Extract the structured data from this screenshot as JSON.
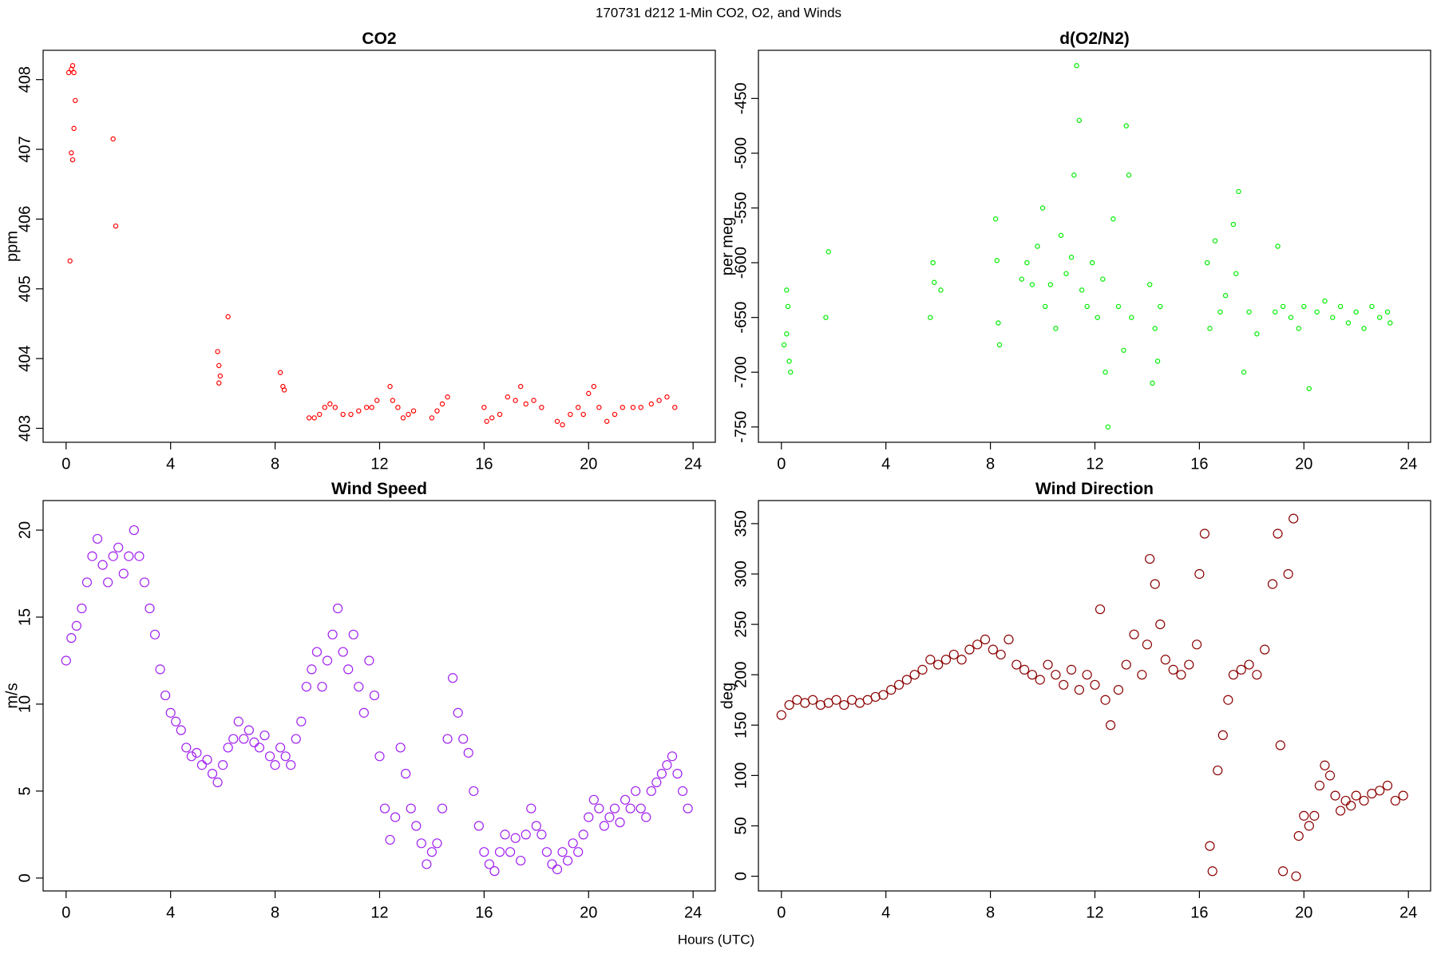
{
  "title": "170731   d212   1-Min CO2, O2, and Winds",
  "x_label": "Hours (UTC)",
  "chart_data": [
    {
      "type": "scatter",
      "title": "CO2",
      "y_label": "ppm",
      "color": "#ff0000",
      "xlim": [
        -0.88,
        24.85
      ],
      "xticks": [
        0,
        4,
        8,
        12,
        16,
        20,
        24
      ],
      "ylim": [
        402.8,
        408.42
      ],
      "yticks": [
        403,
        404,
        405,
        406,
        407,
        408
      ],
      "x": [
        0.1,
        0.2,
        0.25,
        0.3,
        0.2,
        0.25,
        0.15,
        0.3,
        0.35,
        1.8,
        1.9,
        5.8,
        5.85,
        5.9,
        5.85,
        6.2,
        8.2,
        8.3,
        8.35,
        9.3,
        9.5,
        9.7,
        9.9,
        10.1,
        10.3,
        10.6,
        10.9,
        11.2,
        11.5,
        11.7,
        11.9,
        12.4,
        12.5,
        12.7,
        12.9,
        13.1,
        13.3,
        14.0,
        14.2,
        14.4,
        14.6,
        16.0,
        16.1,
        16.3,
        16.6,
        16.9,
        17.2,
        17.4,
        17.6,
        17.9,
        18.2,
        18.8,
        19.0,
        19.3,
        19.6,
        19.8,
        20.0,
        20.2,
        20.4,
        20.7,
        21.0,
        21.3,
        21.7,
        22.0,
        22.4,
        22.7,
        23.0,
        23.3
      ],
      "values": [
        408.1,
        408.15,
        408.2,
        408.1,
        406.95,
        406.85,
        405.4,
        407.3,
        407.7,
        407.15,
        405.9,
        404.1,
        403.9,
        403.75,
        403.65,
        404.6,
        403.8,
        403.6,
        403.55,
        403.15,
        403.15,
        403.2,
        403.3,
        403.35,
        403.3,
        403.2,
        403.2,
        403.25,
        403.3,
        403.3,
        403.4,
        403.6,
        403.4,
        403.3,
        403.15,
        403.2,
        403.25,
        403.15,
        403.25,
        403.35,
        403.45,
        403.3,
        403.1,
        403.15,
        403.2,
        403.45,
        403.4,
        403.6,
        403.35,
        403.4,
        403.3,
        403.1,
        403.05,
        403.2,
        403.3,
        403.2,
        403.5,
        403.6,
        403.3,
        403.1,
        403.2,
        403.3,
        403.3,
        403.3,
        403.35,
        403.4,
        403.45,
        403.3
      ]
    },
    {
      "type": "scatter",
      "title": "d(O2/N2)",
      "y_label": "per meg",
      "color": "#00ee00",
      "xlim": [
        -0.88,
        24.85
      ],
      "xticks": [
        0,
        4,
        8,
        12,
        16,
        20,
        24
      ],
      "ylim": [
        -764,
        -406
      ],
      "yticks": [
        -750,
        -700,
        -650,
        -600,
        -550,
        -500,
        -450
      ],
      "x": [
        0.1,
        0.2,
        0.3,
        0.35,
        0.2,
        0.25,
        1.7,
        1.8,
        5.7,
        5.8,
        5.85,
        6.1,
        8.2,
        8.25,
        8.3,
        8.35,
        9.2,
        9.4,
        9.6,
        9.8,
        10.0,
        10.1,
        10.3,
        10.5,
        10.7,
        10.9,
        11.1,
        11.2,
        11.3,
        11.4,
        11.5,
        11.7,
        11.9,
        12.1,
        12.3,
        12.4,
        12.5,
        12.7,
        12.9,
        13.1,
        13.2,
        13.3,
        13.4,
        14.1,
        14.2,
        14.3,
        14.4,
        14.5,
        16.3,
        16.4,
        16.6,
        16.8,
        17.0,
        17.3,
        17.4,
        17.5,
        17.7,
        17.9,
        18.2,
        18.9,
        19.0,
        19.2,
        19.5,
        19.8,
        20.0,
        20.2,
        20.5,
        20.8,
        21.1,
        21.4,
        21.7,
        22.0,
        22.3,
        22.6,
        22.9,
        23.2,
        23.3
      ],
      "values": [
        -675,
        -665,
        -690,
        -700,
        -625,
        -640,
        -650,
        -590,
        -650,
        -600,
        -618,
        -625,
        -560,
        -598,
        -655,
        -675,
        -615,
        -600,
        -620,
        -585,
        -550,
        -640,
        -620,
        -660,
        -575,
        -610,
        -595,
        -520,
        -420,
        -470,
        -625,
        -640,
        -600,
        -650,
        -615,
        -700,
        -750,
        -560,
        -640,
        -680,
        -475,
        -520,
        -650,
        -620,
        -710,
        -660,
        -690,
        -640,
        -600,
        -660,
        -580,
        -645,
        -630,
        -565,
        -610,
        -535,
        -700,
        -645,
        -665,
        -645,
        -585,
        -640,
        -650,
        -660,
        -640,
        -715,
        -645,
        -635,
        -650,
        -640,
        -655,
        -645,
        -660,
        -640,
        -650,
        -645,
        -655
      ]
    },
    {
      "type": "scatter",
      "title": "Wind Speed",
      "y_label": "m/s",
      "color": "#a020f0",
      "xlim": [
        -0.88,
        24.85
      ],
      "xticks": [
        0,
        4,
        8,
        12,
        16,
        20,
        24
      ],
      "ylim": [
        -0.74,
        21.7
      ],
      "yticks": [
        0,
        5,
        10,
        15,
        20
      ],
      "x": [
        0,
        0.2,
        0.4,
        0.6,
        0.8,
        1.0,
        1.2,
        1.4,
        1.6,
        1.8,
        2.0,
        2.2,
        2.4,
        2.6,
        2.8,
        3.0,
        3.2,
        3.4,
        3.6,
        3.8,
        4.0,
        4.2,
        4.4,
        4.6,
        4.8,
        5.0,
        5.2,
        5.4,
        5.6,
        5.8,
        6.0,
        6.2,
        6.4,
        6.6,
        6.8,
        7.0,
        7.2,
        7.4,
        7.6,
        7.8,
        8.0,
        8.2,
        8.4,
        8.6,
        8.8,
        9.0,
        9.2,
        9.4,
        9.6,
        9.8,
        10.0,
        10.2,
        10.4,
        10.6,
        10.8,
        11.0,
        11.2,
        11.4,
        11.6,
        11.8,
        12.0,
        12.2,
        12.4,
        12.6,
        12.8,
        13.0,
        13.2,
        13.4,
        13.6,
        13.8,
        14.0,
        14.2,
        14.4,
        14.6,
        14.8,
        15.0,
        15.2,
        15.4,
        15.6,
        15.8,
        16.0,
        16.2,
        16.4,
        16.6,
        16.8,
        17.0,
        17.2,
        17.4,
        17.6,
        17.8,
        18.0,
        18.2,
        18.4,
        18.6,
        18.8,
        19.0,
        19.2,
        19.4,
        19.6,
        19.8,
        20.0,
        20.2,
        20.4,
        20.6,
        20.8,
        21.0,
        21.2,
        21.4,
        21.6,
        21.8,
        22.0,
        22.2,
        22.4,
        22.6,
        22.8,
        23.0,
        23.2,
        23.4,
        23.6,
        23.8
      ],
      "values": [
        12.5,
        13.8,
        14.5,
        15.5,
        17,
        18.5,
        19.5,
        18,
        17,
        18.5,
        19,
        17.5,
        18.5,
        20,
        18.5,
        17,
        15.5,
        14,
        12,
        10.5,
        9.5,
        9,
        8.5,
        7.5,
        7,
        7.2,
        6.5,
        6.8,
        6,
        5.5,
        6.5,
        7.5,
        8,
        9,
        8,
        8.5,
        7.8,
        7.5,
        8.2,
        7,
        6.5,
        7.5,
        7,
        6.5,
        8,
        9,
        11,
        12,
        13,
        11,
        12.5,
        14,
        15.5,
        13,
        12,
        14,
        11,
        9.5,
        12.5,
        10.5,
        7,
        4,
        2.2,
        3.5,
        7.5,
        6,
        4,
        3,
        2,
        0.8,
        1.5,
        2,
        4,
        8,
        11.5,
        9.5,
        8,
        7.2,
        5,
        3,
        1.5,
        0.8,
        0.4,
        1.5,
        2.5,
        1.5,
        2.3,
        1,
        2.5,
        4,
        3,
        2.5,
        1.5,
        0.8,
        0.5,
        1.5,
        1,
        2,
        1.5,
        2.5,
        3.5,
        4.5,
        4,
        3,
        3.5,
        4,
        3.2,
        4.5,
        4,
        5,
        4,
        3.5,
        5,
        5.5,
        6,
        6.5,
        7,
        6,
        5,
        4
      ]
    },
    {
      "type": "scatter",
      "title": "Wind Direction",
      "y_label": "deg",
      "color": "#8b0000",
      "xlim": [
        -0.88,
        24.85
      ],
      "xticks": [
        0,
        4,
        8,
        12,
        16,
        20,
        24
      ],
      "ylim": [
        -14.6,
        372.9
      ],
      "yticks": [
        0,
        50,
        100,
        150,
        200,
        250,
        300,
        350
      ],
      "x": [
        0,
        0.3,
        0.6,
        0.9,
        1.2,
        1.5,
        1.8,
        2.1,
        2.4,
        2.7,
        3.0,
        3.3,
        3.6,
        3.9,
        4.2,
        4.5,
        4.8,
        5.1,
        5.4,
        5.7,
        6.0,
        6.3,
        6.6,
        6.9,
        7.2,
        7.5,
        7.8,
        8.1,
        8.4,
        8.7,
        9.0,
        9.3,
        9.6,
        9.9,
        10.2,
        10.5,
        10.8,
        11.1,
        11.4,
        11.7,
        12.0,
        12.2,
        12.4,
        12.6,
        12.9,
        13.2,
        13.5,
        13.8,
        14.0,
        14.1,
        14.3,
        14.5,
        14.7,
        15.0,
        15.3,
        15.6,
        15.9,
        16.0,
        16.2,
        16.4,
        16.5,
        16.7,
        16.9,
        17.1,
        17.3,
        17.6,
        17.9,
        18.2,
        18.5,
        18.8,
        19.0,
        19.1,
        19.2,
        19.4,
        19.6,
        19.7,
        19.8,
        20.0,
        20.2,
        20.4,
        20.6,
        20.8,
        21.0,
        21.2,
        21.4,
        21.6,
        21.8,
        22.0,
        22.3,
        22.6,
        22.9,
        23.2,
        23.5,
        23.8
      ],
      "values": [
        160,
        170,
        175,
        172,
        175,
        170,
        172,
        175,
        170,
        175,
        172,
        175,
        178,
        180,
        185,
        190,
        195,
        200,
        205,
        215,
        210,
        215,
        220,
        215,
        225,
        230,
        235,
        225,
        220,
        235,
        210,
        205,
        200,
        195,
        210,
        200,
        190,
        205,
        185,
        200,
        190,
        265,
        175,
        150,
        185,
        210,
        240,
        200,
        230,
        315,
        290,
        250,
        215,
        205,
        200,
        210,
        230,
        300,
        340,
        30,
        5,
        105,
        140,
        175,
        200,
        205,
        210,
        200,
        225,
        290,
        340,
        130,
        5,
        300,
        355,
        0,
        40,
        60,
        50,
        60,
        90,
        110,
        100,
        80,
        65,
        75,
        70,
        80,
        75,
        82,
        85,
        90,
        75,
        80
      ]
    }
  ]
}
